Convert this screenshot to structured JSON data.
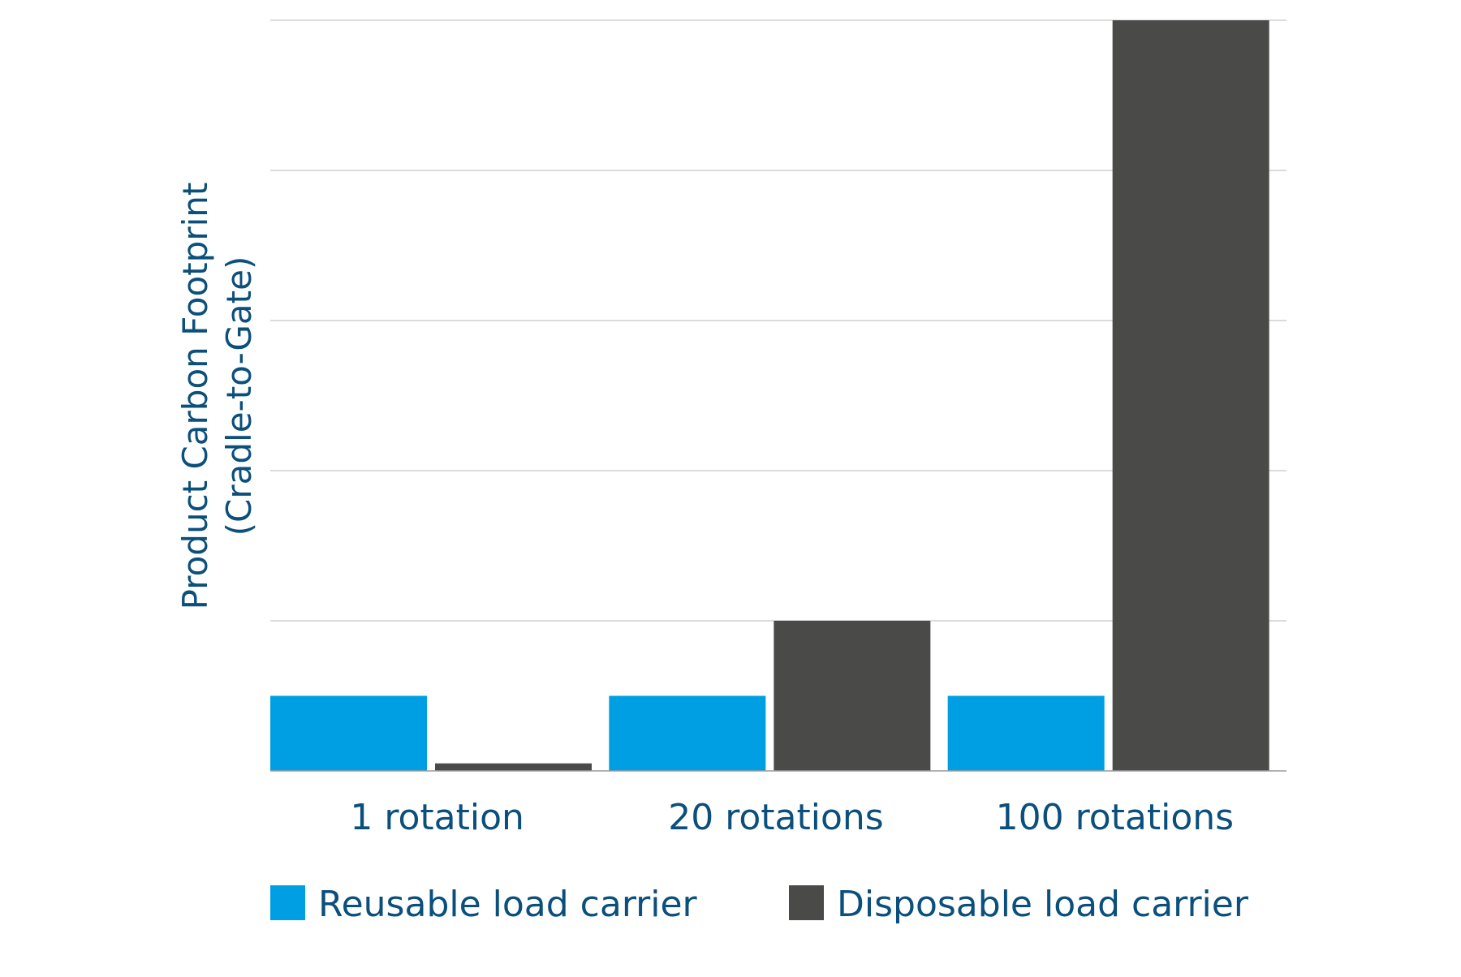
{
  "chart_data": {
    "type": "bar",
    "title": "",
    "xlabel": "",
    "ylabel": "Product Carbon Footprint\n(Cradle-to-Gate)",
    "ylabel_lines": [
      "Product Carbon Footprint",
      "(Cradle-to-Gate)"
    ],
    "categories": [
      "1 rotation",
      "20 rotations",
      "100 rotations"
    ],
    "series": [
      {
        "name": "Reusable load carrier",
        "color": "#009fe3",
        "values": [
          1.0,
          1.0,
          1.0
        ]
      },
      {
        "name": "Disposable load carrier",
        "color": "#4a4a49",
        "values": [
          0.1,
          2.0,
          10.0
        ]
      }
    ],
    "ylim": [
      0,
      10
    ],
    "yticks": [
      0,
      2,
      4,
      6,
      8,
      10
    ],
    "show_tick_labels_y": false,
    "grid": true,
    "legend_position": "bottom",
    "colors": {
      "axis_text": "#0b4f7c",
      "grid": "#cfcfcf",
      "baseline": "#9a9a9a"
    }
  }
}
